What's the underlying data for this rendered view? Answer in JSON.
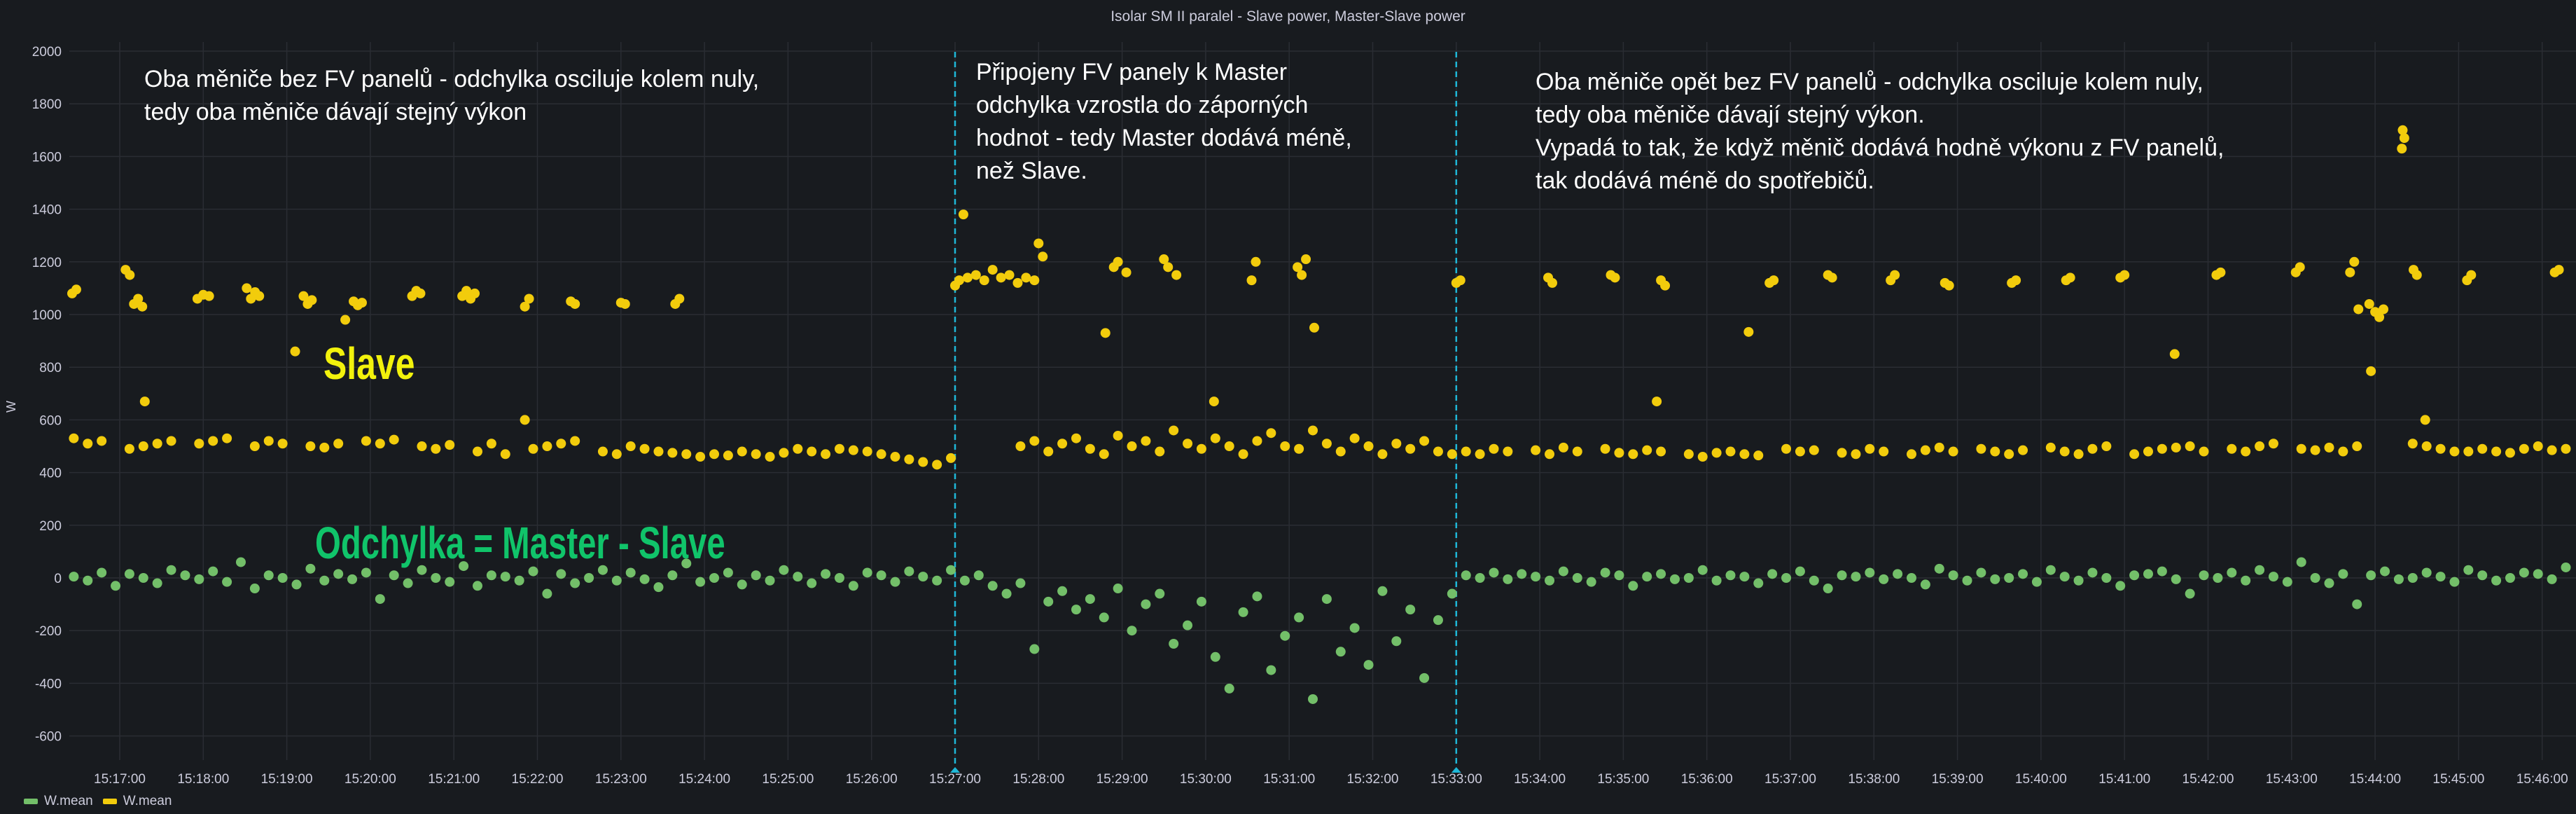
{
  "panel": {
    "title": "Isolar SM II paralel - Slave power, Master-Slave power"
  },
  "overlays": {
    "slave_label": "Slave",
    "diff_label": "Odchylka = Master - Slave",
    "note1": [
      "Oba měniče bez FV panelů - odchylka osciluje kolem nuly,",
      "tedy oba měniče dávají stejný výkon"
    ],
    "note2": [
      "Připojeny FV panely k Master",
      "odchylka vzrostla do záporných",
      "hodnot - tedy Master dodává méně,",
      "než Slave."
    ],
    "note3": [
      "Oba měniče opět bez FV panelů - odchylka osciluje kolem nuly,",
      "tedy oba měniče dávají stejný výkon.",
      "Vypadá to tak, že když měnič dodává hodně výkonu z FV panelů,",
      "tak dodává méně do spotřebičů."
    ]
  },
  "chart_data": {
    "type": "scatter",
    "title": "Isolar SM II paralel - Slave power, Master-Slave power",
    "xlabel": "",
    "ylabel": "W",
    "x_unit": "minutes after 15:00",
    "xlim": [
      16.4,
      46.4
    ],
    "ylim": [
      -650,
      2050
    ],
    "yticks": [
      2000,
      1800,
      1600,
      1400,
      1200,
      1000,
      800,
      600,
      400,
      200,
      0,
      -200,
      -400,
      -600
    ],
    "xticks": [
      17,
      18,
      19,
      20,
      21,
      22,
      23,
      24,
      25,
      26,
      27,
      28,
      29,
      30,
      31,
      32,
      33,
      34,
      35,
      36,
      37,
      38,
      39,
      40,
      41,
      42,
      43,
      44,
      45,
      46
    ],
    "xtick_labels": [
      "15:17:00",
      "15:18:00",
      "15:19:00",
      "15:20:00",
      "15:21:00",
      "15:22:00",
      "15:23:00",
      "15:24:00",
      "15:25:00",
      "15:26:00",
      "15:27:00",
      "15:28:00",
      "15:29:00",
      "15:30:00",
      "15:31:00",
      "15:32:00",
      "15:33:00",
      "15:34:00",
      "15:35:00",
      "15:36:00",
      "15:37:00",
      "15:38:00",
      "15:39:00",
      "15:40:00",
      "15:41:00",
      "15:42:00",
      "15:43:00",
      "15:44:00",
      "15:45:00",
      "15:46:00"
    ],
    "grid": true,
    "legend_position": "bottom-left",
    "annotations": [
      {
        "x": 27,
        "color": "#1fb8d8"
      },
      {
        "x": 33,
        "color": "#1fb8d8"
      }
    ],
    "series": [
      {
        "name": "W.mean",
        "color": "#73bf69",
        "x_start": 16.45,
        "x_step_seconds": 10,
        "values": [
          5,
          -10,
          20,
          -30,
          15,
          0,
          -20,
          30,
          10,
          -5,
          25,
          -15,
          60,
          -40,
          10,
          0,
          -25,
          35,
          -10,
          15,
          -5,
          20,
          -80,
          10,
          -20,
          30,
          0,
          -15,
          45,
          -30,
          10,
          5,
          -10,
          25,
          -60,
          15,
          -20,
          0,
          30,
          -10,
          20,
          -5,
          -35,
          10,
          55,
          -15,
          0,
          20,
          -25,
          10,
          -10,
          30,
          5,
          -20,
          15,
          0,
          -30,
          20,
          10,
          -15,
          25,
          5,
          -10,
          30,
          -10,
          10,
          -30,
          -60,
          -20,
          -270,
          -90,
          -50,
          -120,
          -80,
          -150,
          -40,
          -200,
          -100,
          -60,
          -250,
          -180,
          -90,
          -300,
          -420,
          -130,
          -70,
          -350,
          -220,
          -150,
          -460,
          -80,
          -280,
          -190,
          -330,
          -50,
          -240,
          -120,
          -380,
          -160,
          -60,
          10,
          0,
          20,
          -5,
          15,
          5,
          -10,
          25,
          0,
          -15,
          20,
          10,
          -30,
          5,
          15,
          -5,
          0,
          30,
          -10,
          10,
          5,
          -20,
          15,
          0,
          25,
          -10,
          -40,
          10,
          5,
          20,
          -5,
          15,
          0,
          -25,
          35,
          10,
          -10,
          20,
          -5,
          0,
          15,
          -15,
          30,
          5,
          -10,
          20,
          0,
          -30,
          10,
          15,
          25,
          -5,
          -60,
          10,
          0,
          20,
          -10,
          30,
          5,
          -15,
          60,
          0,
          -20,
          15,
          -100,
          10,
          25,
          -5,
          0,
          20,
          5,
          -15,
          30,
          10,
          -10,
          0,
          20,
          15,
          -5,
          40
        ]
      },
      {
        "name": "W.mean",
        "color": "#f2cc0c",
        "x_start": 16.45,
        "x_step_seconds": 10,
        "values": [
          530,
          510,
          520,
          null,
          490,
          500,
          510,
          520,
          null,
          510,
          520,
          530,
          null,
          500,
          520,
          510,
          null,
          500,
          495,
          510,
          null,
          520,
          510,
          525,
          null,
          500,
          490,
          505,
          null,
          480,
          510,
          470,
          null,
          490,
          500,
          510,
          520,
          null,
          480,
          470,
          500,
          490,
          480,
          475,
          470,
          460,
          470,
          465,
          480,
          470,
          460,
          475,
          490,
          480,
          470,
          490,
          485,
          480,
          470,
          460,
          450,
          440,
          430,
          455,
          null,
          null,
          null,
          null,
          500,
          520,
          480,
          510,
          530,
          490,
          470,
          540,
          500,
          520,
          480,
          560,
          510,
          490,
          530,
          500,
          470,
          520,
          550,
          500,
          490,
          560,
          510,
          480,
          530,
          500,
          470,
          510,
          490,
          520,
          480,
          470,
          480,
          470,
          490,
          480,
          null,
          485,
          470,
          495,
          480,
          null,
          490,
          475,
          470,
          485,
          480,
          null,
          470,
          460,
          475,
          480,
          470,
          465,
          null,
          490,
          480,
          485,
          null,
          475,
          470,
          490,
          480,
          null,
          470,
          485,
          495,
          480,
          null,
          490,
          480,
          470,
          485,
          null,
          495,
          480,
          470,
          490,
          500,
          null,
          470,
          480,
          490,
          495,
          500,
          480,
          null,
          490,
          480,
          500,
          510,
          null,
          490,
          485,
          495,
          480,
          500,
          null,
          null,
          null,
          510,
          500,
          490,
          480,
          480,
          490,
          480,
          475,
          490,
          500,
          485,
          490
        ],
        "extra_points": [
          [
            16.43,
            1080
          ],
          [
            16.48,
            1095
          ],
          [
            17.07,
            1170
          ],
          [
            17.12,
            1150
          ],
          [
            17.17,
            1040
          ],
          [
            17.22,
            1060
          ],
          [
            17.27,
            1030
          ],
          [
            17.3,
            670
          ],
          [
            17.93,
            1060
          ],
          [
            18.0,
            1075
          ],
          [
            18.07,
            1070
          ],
          [
            18.52,
            1100
          ],
          [
            18.57,
            1060
          ],
          [
            18.62,
            1085
          ],
          [
            18.67,
            1070
          ],
          [
            19.1,
            860
          ],
          [
            19.2,
            1070
          ],
          [
            19.25,
            1040
          ],
          [
            19.3,
            1055
          ],
          [
            19.7,
            980
          ],
          [
            19.8,
            1050
          ],
          [
            19.85,
            1035
          ],
          [
            19.9,
            1045
          ],
          [
            20.5,
            1070
          ],
          [
            20.55,
            1090
          ],
          [
            20.6,
            1080
          ],
          [
            21.1,
            1070
          ],
          [
            21.15,
            1090
          ],
          [
            21.2,
            1060
          ],
          [
            21.25,
            1080
          ],
          [
            21.85,
            1030
          ],
          [
            21.9,
            1060
          ],
          [
            21.85,
            600
          ],
          [
            22.4,
            1050
          ],
          [
            22.45,
            1040
          ],
          [
            23.0,
            1045
          ],
          [
            23.05,
            1040
          ],
          [
            23.65,
            1040
          ],
          [
            23.7,
            1060
          ],
          [
            27.0,
            1110
          ],
          [
            27.05,
            1130
          ],
          [
            27.1,
            1380
          ],
          [
            27.15,
            1140
          ],
          [
            27.25,
            1150
          ],
          [
            27.35,
            1130
          ],
          [
            27.45,
            1170
          ],
          [
            27.55,
            1140
          ],
          [
            27.65,
            1150
          ],
          [
            27.75,
            1120
          ],
          [
            27.85,
            1140
          ],
          [
            27.95,
            1130
          ],
          [
            28.0,
            1270
          ],
          [
            28.05,
            1220
          ],
          [
            28.8,
            930
          ],
          [
            28.9,
            1180
          ],
          [
            28.95,
            1200
          ],
          [
            29.05,
            1160
          ],
          [
            29.5,
            1210
          ],
          [
            29.55,
            1180
          ],
          [
            29.65,
            1150
          ],
          [
            30.1,
            670
          ],
          [
            30.55,
            1130
          ],
          [
            30.6,
            1200
          ],
          [
            31.1,
            1180
          ],
          [
            31.15,
            1150
          ],
          [
            31.2,
            1210
          ],
          [
            31.3,
            950
          ],
          [
            33.0,
            1120
          ],
          [
            33.05,
            1130
          ],
          [
            34.1,
            1140
          ],
          [
            34.15,
            1120
          ],
          [
            34.85,
            1150
          ],
          [
            34.9,
            1140
          ],
          [
            35.4,
            670
          ],
          [
            35.45,
            1130
          ],
          [
            35.5,
            1110
          ],
          [
            36.5,
            934
          ],
          [
            36.75,
            1120
          ],
          [
            36.8,
            1130
          ],
          [
            37.45,
            1150
          ],
          [
            37.5,
            1140
          ],
          [
            38.2,
            1130
          ],
          [
            38.25,
            1150
          ],
          [
            38.85,
            1120
          ],
          [
            38.9,
            1110
          ],
          [
            39.65,
            1120
          ],
          [
            39.7,
            1130
          ],
          [
            40.3,
            1130
          ],
          [
            40.35,
            1140
          ],
          [
            40.95,
            1140
          ],
          [
            41.0,
            1150
          ],
          [
            41.6,
            850
          ],
          [
            42.1,
            1150
          ],
          [
            42.15,
            1160
          ],
          [
            43.05,
            1160
          ],
          [
            43.1,
            1180
          ],
          [
            43.7,
            1160
          ],
          [
            43.75,
            1200
          ],
          [
            43.8,
            1020
          ],
          [
            43.93,
            1040
          ],
          [
            43.95,
            785
          ],
          [
            44.0,
            1010
          ],
          [
            44.05,
            990
          ],
          [
            44.1,
            1020
          ],
          [
            44.33,
            1700
          ],
          [
            44.35,
            1670
          ],
          [
            44.32,
            1630
          ],
          [
            44.46,
            1170
          ],
          [
            44.5,
            1150
          ],
          [
            44.6,
            600
          ],
          [
            45.1,
            1130
          ],
          [
            45.15,
            1150
          ],
          [
            46.15,
            1160
          ],
          [
            46.2,
            1170
          ]
        ]
      }
    ]
  },
  "legend": [
    {
      "label": "W.mean",
      "color": "#73bf69"
    },
    {
      "label": "W.mean",
      "color": "#f2cc0c"
    }
  ]
}
